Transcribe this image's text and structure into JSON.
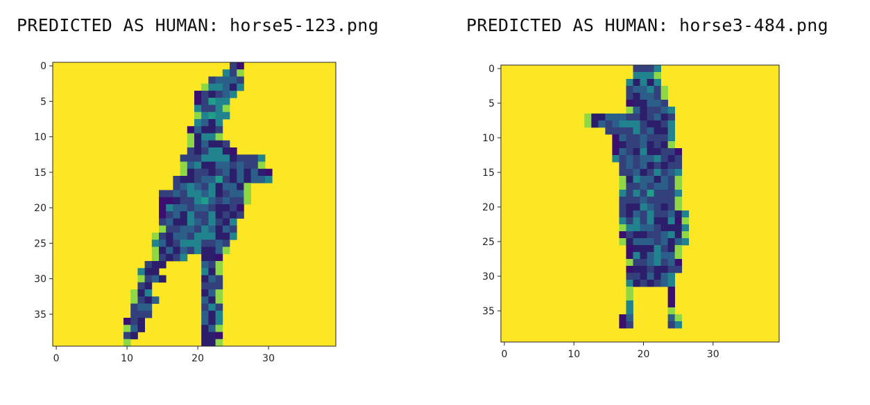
{
  "panels": [
    {
      "title": "PREDICTED AS HUMAN: horse5-123.png"
    },
    {
      "title": "PREDICTED AS HUMAN: horse3-484.png"
    }
  ],
  "chart_data": [
    {
      "type": "heatmap",
      "title": "PREDICTED AS HUMAN: horse5-123.png",
      "colormap": "viridis",
      "background_color": "#fde725",
      "grid_shape": [
        40,
        40
      ],
      "xlim": [
        -0.5,
        39.5
      ],
      "ylim": [
        39.5,
        -0.5
      ],
      "x_ticks": [
        0,
        10,
        20,
        30
      ],
      "y_ticks": [
        0,
        5,
        10,
        15,
        20,
        25,
        30,
        35
      ],
      "grid": false,
      "row_extents": [
        [
          25,
          26
        ],
        [
          24,
          26
        ],
        [
          22,
          26
        ],
        [
          21,
          26
        ],
        [
          20,
          25
        ],
        [
          20,
          24
        ],
        [
          20,
          24
        ],
        [
          20,
          24
        ],
        [
          20,
          23
        ],
        [
          19,
          23
        ],
        [
          19,
          23
        ],
        [
          19,
          24
        ],
        [
          19,
          25
        ],
        [
          18,
          29
        ],
        [
          18,
          29
        ],
        [
          18,
          30
        ],
        [
          17,
          30
        ],
        [
          17,
          27
        ],
        [
          15,
          27
        ],
        [
          15,
          27
        ],
        [
          15,
          26
        ],
        [
          15,
          26
        ],
        [
          15,
          25
        ],
        [
          15,
          25
        ],
        [
          14,
          25
        ],
        [
          14,
          24
        ],
        [
          14,
          24
        ],
        [
          14,
          23
        ],
        [
          13,
          23
        ],
        [
          12,
          23
        ],
        [
          12,
          23
        ],
        [
          12,
          23
        ],
        [
          11,
          23
        ],
        [
          11,
          23
        ],
        [
          11,
          23
        ],
        [
          11,
          23
        ],
        [
          10,
          23
        ],
        [
          10,
          23
        ],
        [
          10,
          23
        ],
        [
          10,
          23
        ]
      ],
      "row_holes": [
        [],
        [],
        [],
        [],
        [],
        [],
        [],
        [],
        [],
        [],
        [],
        [],
        [],
        [],
        [],
        [],
        [],
        [],
        [],
        [],
        [],
        [],
        [],
        [],
        [],
        [],
        [],
        [
          19,
          20
        ],
        [
          16,
          20
        ],
        [
          15,
          20
        ],
        [
          16,
          20
        ],
        [
          14,
          20
        ],
        [
          14,
          20
        ],
        [
          15,
          20
        ],
        [
          14,
          20
        ],
        [
          14,
          20
        ],
        [
          13,
          20
        ],
        [
          13,
          20
        ],
        [
          12,
          20
        ],
        [
          11,
          20
        ]
      ]
    },
    {
      "type": "heatmap",
      "title": "PREDICTED AS HUMAN: horse3-484.png",
      "colormap": "viridis",
      "background_color": "#fde725",
      "grid_shape": [
        40,
        40
      ],
      "xlim": [
        -0.5,
        39.5
      ],
      "ylim": [
        39.5,
        -0.5
      ],
      "x_ticks": [
        0,
        10,
        20,
        30
      ],
      "y_ticks": [
        0,
        5,
        10,
        15,
        20,
        25,
        30,
        35
      ],
      "grid": false,
      "row_extents": [
        [
          19,
          22
        ],
        [
          19,
          22
        ],
        [
          18,
          22
        ],
        [
          18,
          23
        ],
        [
          18,
          23
        ],
        [
          18,
          23
        ],
        [
          18,
          24
        ],
        [
          12,
          24
        ],
        [
          12,
          24
        ],
        [
          15,
          24
        ],
        [
          16,
          24
        ],
        [
          16,
          24
        ],
        [
          16,
          25
        ],
        [
          16,
          25
        ],
        [
          17,
          25
        ],
        [
          17,
          25
        ],
        [
          17,
          25
        ],
        [
          17,
          25
        ],
        [
          17,
          25
        ],
        [
          17,
          25
        ],
        [
          17,
          25
        ],
        [
          17,
          26
        ],
        [
          17,
          26
        ],
        [
          17,
          26
        ],
        [
          17,
          26
        ],
        [
          17,
          26
        ],
        [
          18,
          25
        ],
        [
          18,
          25
        ],
        [
          18,
          25
        ],
        [
          18,
          25
        ],
        [
          18,
          24
        ],
        [
          18,
          24
        ],
        [
          18,
          24
        ],
        [
          18,
          24
        ],
        [
          18,
          24
        ],
        [
          18,
          24
        ],
        [
          17,
          25
        ],
        [
          17,
          25
        ],
        [
          0,
          0
        ],
        [
          0,
          0
        ]
      ],
      "row_holes": [
        [],
        [],
        [],
        [],
        [],
        [],
        [],
        [],
        [],
        [],
        [],
        [],
        [],
        [],
        [],
        [],
        [],
        [],
        [],
        [],
        [],
        [],
        [],
        [],
        [],
        [],
        [],
        [],
        [],
        [],
        [],
        [],
        [
          19,
          23
        ],
        [
          19,
          23
        ],
        [
          19,
          23
        ],
        [
          19,
          23
        ],
        [
          19,
          23
        ],
        [
          19,
          23
        ],
        [],
        []
      ]
    }
  ]
}
